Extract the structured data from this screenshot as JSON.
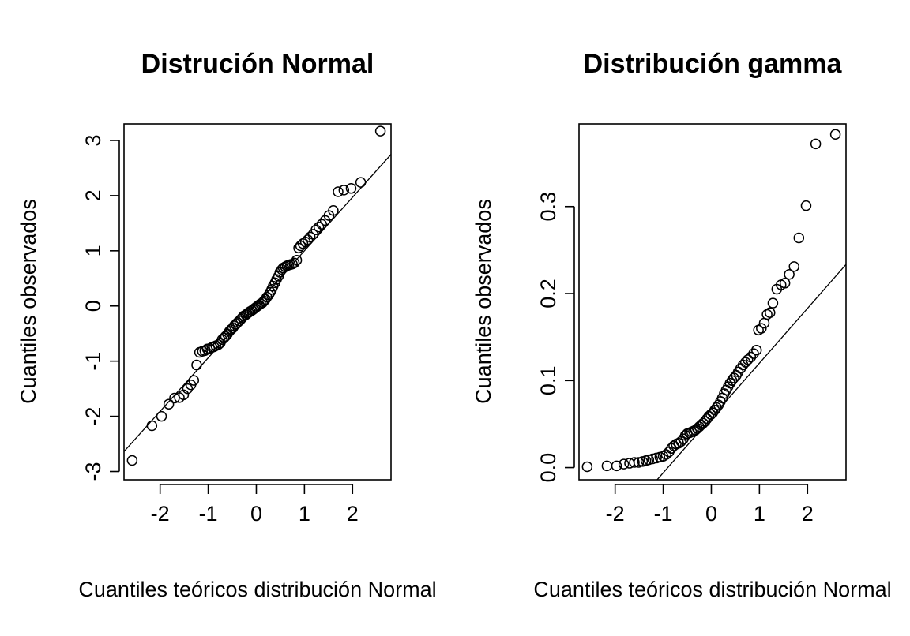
{
  "chart_data": [
    {
      "type": "scatter",
      "title": "Distrución Normal",
      "xlabel": "Cuantiles teóricos distribución Normal",
      "ylabel": "Cuantiles observados",
      "xlim": [
        -2.75,
        2.8
      ],
      "ylim": [
        -3.15,
        3.3
      ],
      "x_ticks": [
        -2,
        -1,
        0,
        1,
        2
      ],
      "y_ticks": [
        -3,
        -2,
        -1,
        0,
        1,
        2,
        3
      ],
      "x_tick_labels": [
        "-2",
        "-1",
        "0",
        "1",
        "2"
      ],
      "y_tick_labels": [
        "-3",
        "-2",
        "-1",
        "0",
        "1",
        "2",
        "3"
      ],
      "reference_line": {
        "intercept": 0.03,
        "slope": 0.97
      },
      "grid": false,
      "series": [
        {
          "values": [
            [
              -2.58,
              -2.8
            ],
            [
              -2.17,
              -2.17
            ],
            [
              -1.97,
              -2.0
            ],
            [
              -1.82,
              -1.78
            ],
            [
              -1.7,
              -1.67
            ],
            [
              -1.6,
              -1.66
            ],
            [
              -1.51,
              -1.61
            ],
            [
              -1.43,
              -1.5
            ],
            [
              -1.36,
              -1.43
            ],
            [
              -1.3,
              -1.35
            ],
            [
              -1.24,
              -1.07
            ],
            [
              -1.18,
              -0.84
            ],
            [
              -1.12,
              -0.82
            ],
            [
              -1.07,
              -0.81
            ],
            [
              -1.02,
              -0.78
            ],
            [
              -0.97,
              -0.77
            ],
            [
              -0.92,
              -0.75
            ],
            [
              -0.88,
              -0.74
            ],
            [
              -0.84,
              -0.72
            ],
            [
              -0.79,
              -0.7
            ],
            [
              -0.75,
              -0.67
            ],
            [
              -0.71,
              -0.61
            ],
            [
              -0.67,
              -0.58
            ],
            [
              -0.64,
              -0.55
            ],
            [
              -0.6,
              -0.51
            ],
            [
              -0.56,
              -0.46
            ],
            [
              -0.53,
              -0.43
            ],
            [
              -0.49,
              -0.4
            ],
            [
              -0.46,
              -0.36
            ],
            [
              -0.42,
              -0.33
            ],
            [
              -0.39,
              -0.3
            ],
            [
              -0.35,
              -0.27
            ],
            [
              -0.32,
              -0.24
            ],
            [
              -0.29,
              -0.21
            ],
            [
              -0.26,
              -0.18
            ],
            [
              -0.22,
              -0.16
            ],
            [
              -0.19,
              -0.14
            ],
            [
              -0.16,
              -0.12
            ],
            [
              -0.13,
              -0.1
            ],
            [
              -0.09,
              -0.08
            ],
            [
              -0.06,
              -0.06
            ],
            [
              -0.03,
              -0.04
            ],
            [
              0.0,
              -0.02
            ],
            [
              0.03,
              0.0
            ],
            [
              0.06,
              0.02
            ],
            [
              0.09,
              0.04
            ],
            [
              0.13,
              0.06
            ],
            [
              0.16,
              0.09
            ],
            [
              0.19,
              0.12
            ],
            [
              0.22,
              0.16
            ],
            [
              0.26,
              0.2
            ],
            [
              0.29,
              0.25
            ],
            [
              0.32,
              0.3
            ],
            [
              0.35,
              0.36
            ],
            [
              0.39,
              0.42
            ],
            [
              0.42,
              0.48
            ],
            [
              0.46,
              0.54
            ],
            [
              0.49,
              0.61
            ],
            [
              0.53,
              0.66
            ],
            [
              0.56,
              0.69
            ],
            [
              0.6,
              0.71
            ],
            [
              0.64,
              0.73
            ],
            [
              0.67,
              0.74
            ],
            [
              0.71,
              0.75
            ],
            [
              0.75,
              0.76
            ],
            [
              0.79,
              0.78
            ],
            [
              0.84,
              0.83
            ],
            [
              0.88,
              1.05
            ],
            [
              0.92,
              1.09
            ],
            [
              0.97,
              1.13
            ],
            [
              1.02,
              1.16
            ],
            [
              1.07,
              1.2
            ],
            [
              1.12,
              1.25
            ],
            [
              1.18,
              1.3
            ],
            [
              1.24,
              1.38
            ],
            [
              1.3,
              1.43
            ],
            [
              1.36,
              1.48
            ],
            [
              1.43,
              1.55
            ],
            [
              1.51,
              1.64
            ],
            [
              1.6,
              1.73
            ],
            [
              1.7,
              2.07
            ],
            [
              1.82,
              2.1
            ],
            [
              1.97,
              2.13
            ],
            [
              2.17,
              2.24
            ],
            [
              2.58,
              3.17
            ]
          ]
        }
      ]
    },
    {
      "type": "scatter",
      "title": "Distribución gamma",
      "xlabel": "Cuantiles teóricos distribución Normal",
      "ylabel": "Cuantiles observados",
      "xlim": [
        -2.75,
        2.8
      ],
      "ylim": [
        -0.014,
        0.395
      ],
      "x_ticks": [
        -2,
        -1,
        0,
        1,
        2
      ],
      "y_ticks": [
        0.0,
        0.1,
        0.2,
        0.3
      ],
      "x_tick_labels": [
        "-2",
        "-1",
        "0",
        "1",
        "2"
      ],
      "y_tick_labels": [
        "0.0",
        "0.1",
        "0.2",
        "0.3"
      ],
      "reference_line": {
        "intercept": 0.057,
        "slope": 0.063
      },
      "grid": false,
      "series": [
        {
          "values": [
            [
              -2.58,
              0.001
            ],
            [
              -2.17,
              0.002
            ],
            [
              -1.97,
              0.002
            ],
            [
              -1.82,
              0.004
            ],
            [
              -1.7,
              0.005
            ],
            [
              -1.6,
              0.006
            ],
            [
              -1.51,
              0.006
            ],
            [
              -1.43,
              0.007
            ],
            [
              -1.36,
              0.008
            ],
            [
              -1.3,
              0.009
            ],
            [
              -1.22,
              0.01
            ],
            [
              -1.14,
              0.011
            ],
            [
              -1.07,
              0.012
            ],
            [
              -1.0,
              0.013
            ],
            [
              -0.94,
              0.015
            ],
            [
              -0.88,
              0.018
            ],
            [
              -0.83,
              0.022
            ],
            [
              -0.78,
              0.025
            ],
            [
              -0.73,
              0.027
            ],
            [
              -0.68,
              0.028
            ],
            [
              -0.63,
              0.03
            ],
            [
              -0.58,
              0.033
            ],
            [
              -0.54,
              0.037
            ],
            [
              -0.5,
              0.039
            ],
            [
              -0.45,
              0.04
            ],
            [
              -0.41,
              0.041
            ],
            [
              -0.37,
              0.042
            ],
            [
              -0.33,
              0.043
            ],
            [
              -0.29,
              0.045
            ],
            [
              -0.25,
              0.047
            ],
            [
              -0.21,
              0.049
            ],
            [
              -0.17,
              0.051
            ],
            [
              -0.13,
              0.053
            ],
            [
              -0.09,
              0.056
            ],
            [
              -0.05,
              0.059
            ],
            [
              -0.01,
              0.061
            ],
            [
              0.03,
              0.063
            ],
            [
              0.07,
              0.066
            ],
            [
              0.11,
              0.069
            ],
            [
              0.15,
              0.072
            ],
            [
              0.19,
              0.076
            ],
            [
              0.23,
              0.08
            ],
            [
              0.27,
              0.085
            ],
            [
              0.31,
              0.089
            ],
            [
              0.35,
              0.093
            ],
            [
              0.39,
              0.097
            ],
            [
              0.43,
              0.1
            ],
            [
              0.47,
              0.103
            ],
            [
              0.52,
              0.106
            ],
            [
              0.56,
              0.11
            ],
            [
              0.61,
              0.114
            ],
            [
              0.66,
              0.118
            ],
            [
              0.71,
              0.121
            ],
            [
              0.76,
              0.124
            ],
            [
              0.82,
              0.127
            ],
            [
              0.88,
              0.131
            ],
            [
              0.94,
              0.135
            ],
            [
              0.98,
              0.158
            ],
            [
              1.04,
              0.16
            ],
            [
              1.1,
              0.166
            ],
            [
              1.16,
              0.176
            ],
            [
              1.22,
              0.178
            ],
            [
              1.28,
              0.189
            ],
            [
              1.36,
              0.205
            ],
            [
              1.45,
              0.21
            ],
            [
              1.53,
              0.212
            ],
            [
              1.62,
              0.222
            ],
            [
              1.72,
              0.231
            ],
            [
              1.82,
              0.264
            ],
            [
              1.97,
              0.301
            ],
            [
              2.17,
              0.372
            ],
            [
              2.58,
              0.383
            ]
          ]
        }
      ]
    }
  ]
}
